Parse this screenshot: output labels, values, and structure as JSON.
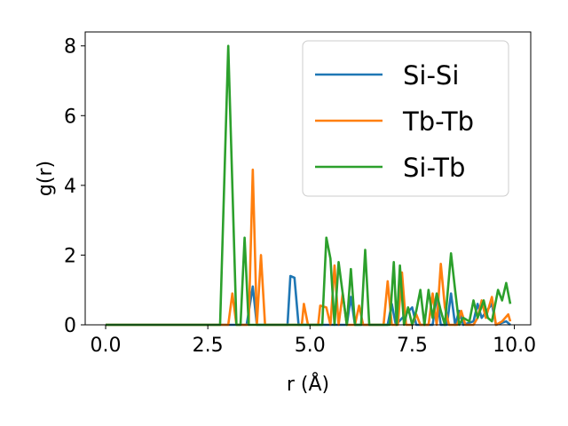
{
  "chart_data": {
    "type": "line",
    "title": "",
    "xlabel": "r (Å)",
    "ylabel": "g(r)",
    "xlim": [
      -0.5,
      10.4
    ],
    "ylim": [
      0,
      8.4
    ],
    "xticks": [
      0.0,
      2.5,
      5.0,
      7.5,
      10.0
    ],
    "xtick_labels": [
      "0.0",
      "2.5",
      "5.0",
      "7.5",
      "10.0"
    ],
    "yticks": [
      0,
      2,
      4,
      6,
      8
    ],
    "ytick_labels": [
      "0",
      "2",
      "4",
      "6",
      "8"
    ],
    "grid": false,
    "legend_position": "top-right",
    "series": [
      {
        "name": "Si-Si",
        "color": "#1f77b4",
        "points": [
          [
            0.0,
            0
          ],
          [
            2.8,
            0
          ],
          [
            3.45,
            0
          ],
          [
            3.6,
            1.1
          ],
          [
            3.7,
            0
          ],
          [
            4.45,
            0
          ],
          [
            4.52,
            1.4
          ],
          [
            4.62,
            1.35
          ],
          [
            4.72,
            0
          ],
          [
            5.9,
            0
          ],
          [
            6.0,
            0.8
          ],
          [
            6.1,
            0
          ],
          [
            6.9,
            0
          ],
          [
            7.0,
            0.6
          ],
          [
            7.1,
            0
          ],
          [
            7.5,
            0.5
          ],
          [
            7.6,
            0
          ],
          [
            8.0,
            0
          ],
          [
            8.1,
            0.8
          ],
          [
            8.2,
            0
          ],
          [
            8.35,
            0
          ],
          [
            8.45,
            0.9
          ],
          [
            8.55,
            0
          ],
          [
            8.65,
            0.4
          ],
          [
            8.75,
            0
          ],
          [
            9.0,
            0.1
          ],
          [
            9.1,
            0.6
          ],
          [
            9.2,
            0.2
          ],
          [
            9.45,
            0.6
          ],
          [
            9.55,
            0
          ],
          [
            9.8,
            0.1
          ],
          [
            9.9,
            0
          ]
        ]
      },
      {
        "name": "Tb-Tb",
        "color": "#ff7f0e",
        "points": [
          [
            0.0,
            0
          ],
          [
            3.0,
            0
          ],
          [
            3.1,
            0.9
          ],
          [
            3.2,
            0
          ],
          [
            3.5,
            0
          ],
          [
            3.6,
            4.45
          ],
          [
            3.7,
            0
          ],
          [
            3.8,
            2.0
          ],
          [
            3.9,
            0
          ],
          [
            4.8,
            0
          ],
          [
            4.85,
            0.6
          ],
          [
            4.95,
            0
          ],
          [
            5.2,
            0
          ],
          [
            5.25,
            0.55
          ],
          [
            5.4,
            0.5
          ],
          [
            5.5,
            0
          ],
          [
            5.6,
            1.7
          ],
          [
            5.7,
            0
          ],
          [
            5.8,
            0.9
          ],
          [
            5.9,
            0
          ],
          [
            6.1,
            0
          ],
          [
            6.2,
            0.55
          ],
          [
            6.3,
            0
          ],
          [
            6.8,
            0
          ],
          [
            6.9,
            1.25
          ],
          [
            7.0,
            0
          ],
          [
            7.15,
            0
          ],
          [
            7.25,
            1.5
          ],
          [
            7.35,
            0
          ],
          [
            7.5,
            0
          ],
          [
            7.6,
            0.3
          ],
          [
            7.7,
            0
          ],
          [
            7.9,
            0
          ],
          [
            8.0,
            0.9
          ],
          [
            8.1,
            0
          ],
          [
            8.2,
            1.75
          ],
          [
            8.3,
            0.5
          ],
          [
            8.4,
            0
          ],
          [
            8.6,
            0
          ],
          [
            8.7,
            0.4
          ],
          [
            8.8,
            0
          ],
          [
            9.0,
            0
          ],
          [
            9.1,
            0.2
          ],
          [
            9.2,
            0.7
          ],
          [
            9.3,
            0.2
          ],
          [
            9.45,
            0.8
          ],
          [
            9.55,
            0
          ],
          [
            9.7,
            0.1
          ],
          [
            9.85,
            0.3
          ],
          [
            9.9,
            0.1
          ]
        ]
      },
      {
        "name": "Si-Tb",
        "color": "#2ca02c",
        "points": [
          [
            0.0,
            0
          ],
          [
            2.8,
            0
          ],
          [
            3.0,
            8.0
          ],
          [
            3.2,
            0
          ],
          [
            3.3,
            0
          ],
          [
            3.4,
            2.5
          ],
          [
            3.5,
            0
          ],
          [
            5.3,
            0
          ],
          [
            5.4,
            2.5
          ],
          [
            5.5,
            1.9
          ],
          [
            5.6,
            0
          ],
          [
            5.7,
            1.8
          ],
          [
            5.8,
            0.9
          ],
          [
            5.9,
            0
          ],
          [
            6.0,
            1.6
          ],
          [
            6.1,
            0
          ],
          [
            6.25,
            0
          ],
          [
            6.35,
            2.15
          ],
          [
            6.45,
            0
          ],
          [
            6.95,
            0
          ],
          [
            7.05,
            1.8
          ],
          [
            7.12,
            0
          ],
          [
            7.2,
            1.7
          ],
          [
            7.3,
            0
          ],
          [
            7.4,
            0.5
          ],
          [
            7.5,
            0
          ],
          [
            7.6,
            0.4
          ],
          [
            7.7,
            1.0
          ],
          [
            7.8,
            0
          ],
          [
            7.9,
            1.0
          ],
          [
            8.0,
            0.2
          ],
          [
            8.1,
            0.9
          ],
          [
            8.2,
            0.4
          ],
          [
            8.3,
            0
          ],
          [
            8.45,
            2.05
          ],
          [
            8.55,
            1.0
          ],
          [
            8.65,
            0
          ],
          [
            8.75,
            0.2
          ],
          [
            8.9,
            0.1
          ],
          [
            9.0,
            0.7
          ],
          [
            9.1,
            0.2
          ],
          [
            9.25,
            0.7
          ],
          [
            9.35,
            0.2
          ],
          [
            9.45,
            0.1
          ],
          [
            9.6,
            1.0
          ],
          [
            9.7,
            0.7
          ],
          [
            9.8,
            1.2
          ],
          [
            9.9,
            0.6
          ]
        ]
      }
    ]
  }
}
